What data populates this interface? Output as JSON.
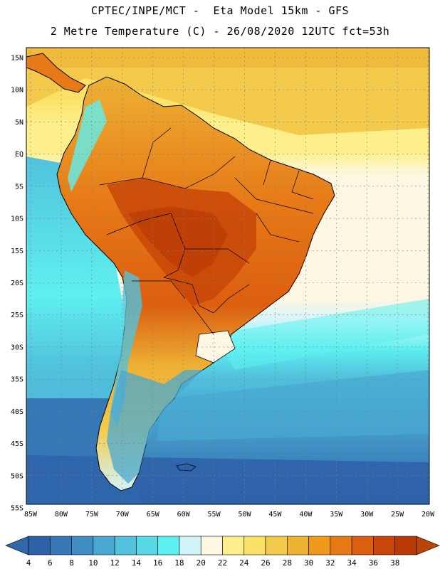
{
  "header": {
    "line1": "CPTEC/INPE/MCT -  Eta Model 15km - GFS",
    "line2": "2 Metre Temperature (C) - 26/08/2020 12UTC fct=53h"
  },
  "map": {
    "lat_labels": [
      "15N",
      "10N",
      "5N",
      "EQ",
      "5S",
      "10S",
      "15S",
      "20S",
      "25S",
      "30S",
      "35S",
      "40S",
      "45S",
      "50S",
      "55S"
    ],
    "lon_labels": [
      "85W",
      "80W",
      "75W",
      "70W",
      "65W",
      "60W",
      "55W",
      "50W",
      "45W",
      "40W",
      "35W",
      "30W",
      "25W",
      "20W"
    ],
    "lat_range": [
      15,
      -55
    ],
    "lon_range": [
      -85,
      -20
    ]
  },
  "colorbar": {
    "tick_labels": [
      "4",
      "6",
      "8",
      "10",
      "12",
      "14",
      "16",
      "18",
      "20",
      "22",
      "24",
      "26",
      "28",
      "30",
      "32",
      "34",
      "36",
      "38"
    ],
    "colors": [
      "#2e62a8",
      "#3677b6",
      "#3f8ec3",
      "#48a8d1",
      "#52c2dd",
      "#58d9e6",
      "#5ef0f0",
      "#d2f5fa",
      "#fdf7e4",
      "#fdf08c",
      "#fbe266",
      "#f4ca4c",
      "#edb134",
      "#ef9a1c",
      "#e77a17",
      "#dc5e0f",
      "#c84708",
      "#b93a06"
    ],
    "under_color": "#2f67aa",
    "over_color": "#b8460b"
  }
}
